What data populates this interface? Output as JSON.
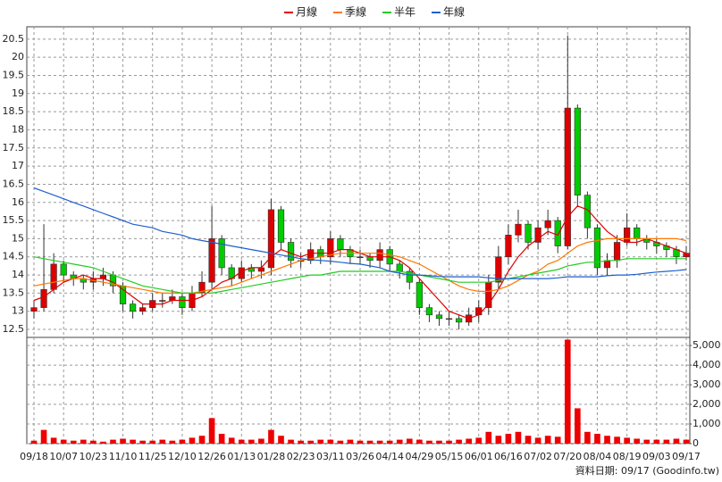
{
  "chart_data": {
    "type": "candlestick",
    "categories": [
      "09/18",
      null,
      null,
      "10/07",
      null,
      null,
      "10/23",
      null,
      null,
      "11/10",
      null,
      null,
      "11/25",
      null,
      null,
      "12/10",
      null,
      null,
      "12/26",
      null,
      null,
      "01/13",
      null,
      null,
      "01/28",
      null,
      null,
      "02/23",
      null,
      null,
      "03/11",
      null,
      null,
      "03/26",
      null,
      null,
      "04/14",
      null,
      null,
      "04/29",
      null,
      null,
      "05/15",
      null,
      null,
      "06/01",
      null,
      null,
      "06/16",
      null,
      null,
      "07/02",
      null,
      null,
      "07/20",
      null,
      null,
      "08/04",
      null,
      null,
      "08/19",
      null,
      null,
      "09/03",
      null,
      null,
      "09/17"
    ],
    "open": [
      13.0,
      13.1,
      13.6,
      14.3,
      14.0,
      13.9,
      13.8,
      13.9,
      14.0,
      13.7,
      13.2,
      13.0,
      13.1,
      13.3,
      13.3,
      13.4,
      13.1,
      13.5,
      13.8,
      15.0,
      14.2,
      13.9,
      14.2,
      14.1,
      14.2,
      15.8,
      14.9,
      14.4,
      14.4,
      14.7,
      14.5,
      15.0,
      14.7,
      14.5,
      14.5,
      14.4,
      14.7,
      14.3,
      14.1,
      13.8,
      13.1,
      12.9,
      12.8,
      12.8,
      12.7,
      12.9,
      13.1,
      13.8,
      14.5,
      15.1,
      15.4,
      14.9,
      15.3,
      15.5,
      14.8,
      18.6,
      16.2,
      15.3,
      14.2,
      14.4,
      14.9,
      15.3,
      15.0,
      14.9,
      14.8,
      14.7,
      14.5
    ],
    "high": [
      13.3,
      15.4,
      14.6,
      14.4,
      14.1,
      14.0,
      14.1,
      14.2,
      14.1,
      13.8,
      13.3,
      13.2,
      13.5,
      13.5,
      13.6,
      13.5,
      13.7,
      14.1,
      15.9,
      15.1,
      14.3,
      14.4,
      14.3,
      14.4,
      16.1,
      15.9,
      15.0,
      14.6,
      14.9,
      14.8,
      15.2,
      15.1,
      14.8,
      14.7,
      14.6,
      14.9,
      14.8,
      14.4,
      14.2,
      13.9,
      13.2,
      13.0,
      13.0,
      12.9,
      13.1,
      13.3,
      14.0,
      14.8,
      15.4,
      15.8,
      15.5,
      15.5,
      15.8,
      15.6,
      20.6,
      18.7,
      16.3,
      15.4,
      14.6,
      15.1,
      15.7,
      15.4,
      15.1,
      15.0,
      14.9,
      14.8,
      14.8
    ],
    "low": [
      12.8,
      13.0,
      13.5,
      13.8,
      13.7,
      13.6,
      13.6,
      13.7,
      13.5,
      13.0,
      12.8,
      12.9,
      13.0,
      13.1,
      13.2,
      12.9,
      13.0,
      13.4,
      13.6,
      14.0,
      13.7,
      13.8,
      13.9,
      13.9,
      14.0,
      14.7,
      14.2,
      14.2,
      14.3,
      14.3,
      14.3,
      14.5,
      14.3,
      14.3,
      14.2,
      14.2,
      14.1,
      13.9,
      13.6,
      12.9,
      12.7,
      12.6,
      12.6,
      12.5,
      12.6,
      12.7,
      12.9,
      13.6,
      14.3,
      14.9,
      14.7,
      14.7,
      15.1,
      14.6,
      14.7,
      15.9,
      15.0,
      14.0,
      14.0,
      14.2,
      14.8,
      14.8,
      14.7,
      14.6,
      14.5,
      14.3,
      14.4
    ],
    "close": [
      13.1,
      13.6,
      14.3,
      14.0,
      13.9,
      13.8,
      13.9,
      14.0,
      13.7,
      13.2,
      13.0,
      13.1,
      13.3,
      13.3,
      13.4,
      13.1,
      13.5,
      13.8,
      15.0,
      14.2,
      13.9,
      14.2,
      14.1,
      14.2,
      15.8,
      14.9,
      14.4,
      14.4,
      14.7,
      14.5,
      15.0,
      14.7,
      14.5,
      14.5,
      14.4,
      14.7,
      14.3,
      14.1,
      13.8,
      13.1,
      12.9,
      12.8,
      12.8,
      12.7,
      12.9,
      13.1,
      13.8,
      14.5,
      15.1,
      15.4,
      14.9,
      15.3,
      15.5,
      14.8,
      18.6,
      16.2,
      15.3,
      14.2,
      14.4,
      14.9,
      15.3,
      15.0,
      14.9,
      14.8,
      14.7,
      14.5,
      14.6
    ],
    "up_color": "#dd0000",
    "down_color": "#00cc00",
    "series": [
      {
        "name": "月線",
        "color": "#dd0000",
        "values": [
          13.3,
          13.4,
          13.6,
          13.8,
          13.9,
          14.0,
          13.9,
          13.9,
          13.8,
          13.6,
          13.4,
          13.2,
          13.2,
          13.2,
          13.3,
          13.3,
          13.3,
          13.4,
          13.6,
          13.8,
          13.9,
          14.1,
          14.2,
          14.2,
          14.5,
          14.7,
          14.6,
          14.5,
          14.6,
          14.6,
          14.6,
          14.7,
          14.7,
          14.6,
          14.5,
          14.5,
          14.5,
          14.4,
          14.2,
          13.9,
          13.6,
          13.3,
          13.0,
          12.9,
          12.8,
          12.9,
          13.2,
          13.6,
          14.1,
          14.5,
          14.8,
          15.0,
          15.2,
          15.1,
          15.6,
          15.9,
          15.8,
          15.5,
          15.2,
          15.0,
          14.9,
          14.9,
          15.0,
          14.9,
          14.8,
          14.7,
          14.6
        ]
      },
      {
        "name": "季線",
        "color": "#ff7700",
        "values": [
          13.7,
          13.75,
          13.8,
          13.85,
          13.9,
          13.9,
          13.85,
          13.8,
          13.75,
          13.7,
          13.65,
          13.6,
          13.55,
          13.5,
          13.5,
          13.5,
          13.5,
          13.55,
          13.6,
          13.65,
          13.7,
          13.8,
          13.9,
          14.0,
          14.1,
          14.2,
          14.3,
          14.4,
          14.45,
          14.5,
          14.55,
          14.6,
          14.6,
          14.6,
          14.6,
          14.6,
          14.55,
          14.5,
          14.4,
          14.3,
          14.15,
          14.0,
          13.85,
          13.7,
          13.6,
          13.55,
          13.55,
          13.6,
          13.7,
          13.85,
          14.0,
          14.1,
          14.3,
          14.4,
          14.6,
          14.8,
          14.9,
          14.95,
          15.0,
          15.0,
          15.0,
          15.0,
          15.0,
          15.0,
          15.0,
          15.0,
          14.95
        ]
      },
      {
        "name": "半年",
        "color": "#22cc22",
        "values": [
          14.5,
          14.45,
          14.4,
          14.35,
          14.3,
          14.25,
          14.2,
          14.1,
          14.0,
          13.9,
          13.8,
          13.7,
          13.65,
          13.6,
          13.55,
          13.5,
          13.5,
          13.5,
          13.5,
          13.55,
          13.6,
          13.65,
          13.7,
          13.75,
          13.8,
          13.85,
          13.9,
          13.95,
          14.0,
          14.0,
          14.05,
          14.1,
          14.1,
          14.1,
          14.1,
          14.1,
          14.1,
          14.1,
          14.05,
          14.0,
          13.95,
          13.9,
          13.85,
          13.8,
          13.8,
          13.8,
          13.8,
          13.85,
          13.9,
          13.95,
          14.0,
          14.05,
          14.1,
          14.15,
          14.25,
          14.3,
          14.35,
          14.35,
          14.4,
          14.4,
          14.45,
          14.45,
          14.45,
          14.45,
          14.45,
          14.45,
          14.45
        ]
      },
      {
        "name": "年線",
        "color": "#1f5fd0",
        "values": [
          16.4,
          16.3,
          16.2,
          16.1,
          16.0,
          15.9,
          15.8,
          15.7,
          15.6,
          15.5,
          15.4,
          15.35,
          15.3,
          15.2,
          15.15,
          15.1,
          15.0,
          14.95,
          14.9,
          14.85,
          14.8,
          14.75,
          14.7,
          14.65,
          14.6,
          14.55,
          14.5,
          14.45,
          14.42,
          14.4,
          14.38,
          14.35,
          14.32,
          14.3,
          14.25,
          14.2,
          14.1,
          14.05,
          14.0,
          14.0,
          13.98,
          13.96,
          13.95,
          13.95,
          13.95,
          13.95,
          13.92,
          13.9,
          13.9,
          13.9,
          13.9,
          13.9,
          13.9,
          13.92,
          13.95,
          13.95,
          13.95,
          13.95,
          13.98,
          14.0,
          14.0,
          14.02,
          14.05,
          14.08,
          14.1,
          14.12,
          14.15
        ]
      }
    ],
    "volume": {
      "color": "#ee0000",
      "axis": "y2",
      "values": [
        150,
        700,
        300,
        200,
        150,
        200,
        150,
        100,
        200,
        250,
        200,
        150,
        150,
        200,
        150,
        200,
        300,
        400,
        1300,
        500,
        300,
        200,
        200,
        250,
        700,
        400,
        200,
        150,
        150,
        200,
        200,
        150,
        200,
        150,
        150,
        150,
        150,
        200,
        250,
        200,
        150,
        150,
        150,
        200,
        250,
        300,
        600,
        400,
        500,
        600,
        400,
        300,
        400,
        350,
        5300,
        1800,
        600,
        500,
        400,
        350,
        300,
        250,
        200,
        200,
        200,
        250,
        200
      ]
    },
    "ylim": [
      12.28,
      20.84
    ],
    "yticks": [
      12.5,
      13,
      13.5,
      14,
      14.5,
      15,
      15.5,
      16,
      16.5,
      17,
      17.5,
      18,
      18.5,
      19,
      19.5,
      20,
      20.5
    ],
    "y2lim": [
      0,
      5413
    ],
    "y2ticks": [
      0,
      {
        "value": 1000,
        "label": "1,000"
      },
      {
        "value": 2000,
        "label": "2,000"
      },
      {
        "value": 3000,
        "label": "3,000"
      },
      {
        "value": 4000,
        "label": "4,000"
      },
      {
        "value": 5000,
        "label": "5,000"
      }
    ],
    "grid": true,
    "legend": "top",
    "footnote": "資料日期: 09/17 (Goodinfo.tw)"
  }
}
